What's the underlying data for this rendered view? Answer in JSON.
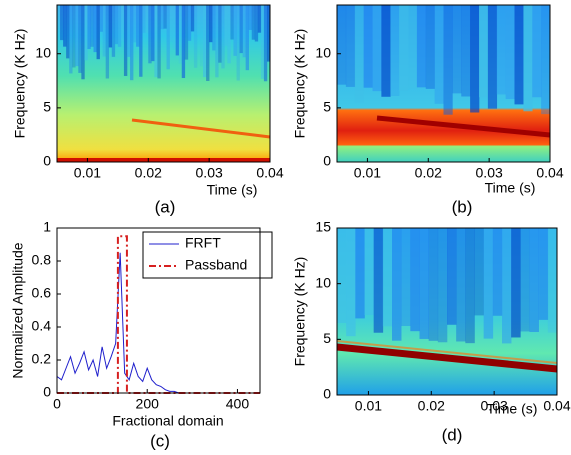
{
  "chart_data": [
    {
      "type": "spectrogram",
      "label": "(a)",
      "x_label": "Time (s)",
      "y_label": "Frequency (K Hz)",
      "xlim": [
        0.005,
        0.04
      ],
      "xticks": [
        0.01,
        0.02,
        0.03,
        0.04
      ],
      "ylim": [
        0,
        14.5
      ],
      "yticks": [
        0,
        5,
        10
      ]
    },
    {
      "type": "spectrogram",
      "label": "(b)",
      "x_label": "Time (s)",
      "y_label": "Frequency (K Hz)",
      "xlim": [
        0.005,
        0.04
      ],
      "xticks": [
        0.01,
        0.02,
        0.03,
        0.04
      ],
      "ylim": [
        0,
        14.5
      ],
      "yticks": [
        0,
        5,
        10
      ]
    },
    {
      "type": "line",
      "label": "(c)",
      "x_label": "Fractional domain",
      "y_label": "Normalized Amplitude",
      "xlim": [
        0,
        450
      ],
      "xticks": [
        0,
        200,
        400
      ],
      "ylim": [
        0,
        1
      ],
      "yticks": [
        0,
        0.2,
        0.4,
        0.6,
        0.8,
        1
      ],
      "legend": "upper right",
      "series": [
        {
          "name": "FRFT",
          "color": "#1f1fcc",
          "dash": "none",
          "x": [
            0,
            10,
            20,
            30,
            40,
            50,
            60,
            70,
            80,
            90,
            100,
            110,
            120,
            130,
            140,
            150,
            160,
            170,
            180,
            190,
            200,
            210,
            220,
            230,
            240,
            250,
            260,
            270,
            280,
            290,
            300,
            310,
            320,
            330,
            340,
            350,
            360,
            370,
            380,
            390,
            400,
            410,
            420,
            430,
            440,
            450
          ],
          "values": [
            0.1,
            0.08,
            0.15,
            0.22,
            0.12,
            0.18,
            0.25,
            0.14,
            0.2,
            0.1,
            0.28,
            0.15,
            0.22,
            0.3,
            0.85,
            0.12,
            0.08,
            0.18,
            0.1,
            0.07,
            0.15,
            0.08,
            0.05,
            0.04,
            0.02,
            0.01,
            0.01,
            0,
            0,
            0,
            0,
            0,
            0,
            0,
            0,
            0,
            0,
            0,
            0,
            0,
            0,
            0,
            0,
            0,
            0,
            0
          ]
        },
        {
          "name": "Passband",
          "color": "#d62020",
          "dash": "7 3 2 3",
          "x": [
            0,
            135,
            135,
            155,
            155,
            450
          ],
          "values": [
            0,
            0,
            0.95,
            0.95,
            0,
            0
          ]
        }
      ]
    },
    {
      "type": "spectrogram",
      "label": "(d)",
      "x_label": "Time (s)",
      "y_label": "Frequency (K Hz)",
      "xlim": [
        0.005,
        0.04
      ],
      "xticks": [
        0.01,
        0.02,
        0.03,
        0.04
      ],
      "ylim": [
        0,
        15
      ],
      "yticks": [
        0,
        5,
        10,
        15
      ]
    }
  ]
}
